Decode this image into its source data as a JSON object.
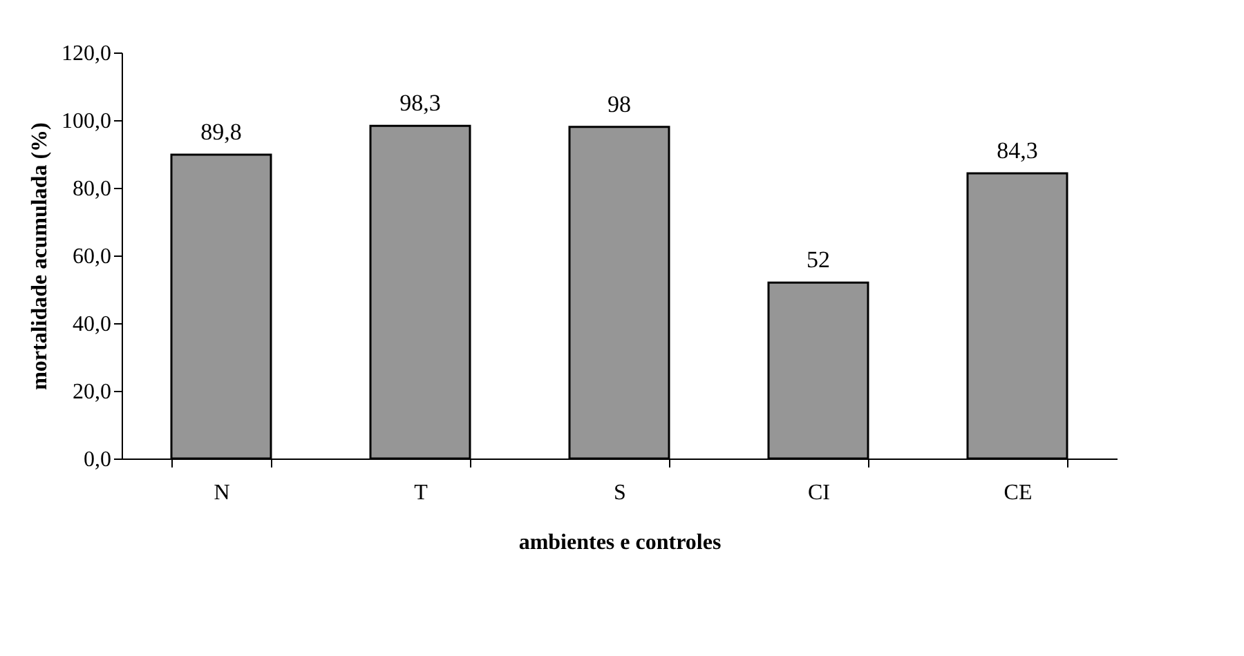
{
  "chart_data": {
    "type": "bar",
    "xlabel": "ambientes e controles",
    "ylabel": "mortalidade acumulada (%)",
    "categories": [
      "N",
      "T",
      "S",
      "CI",
      "CE"
    ],
    "values": [
      89.8,
      98.3,
      98,
      52,
      84.3
    ],
    "value_labels": [
      "89,8",
      "98,3",
      "98",
      "52",
      "84,3"
    ],
    "color": "#969696",
    "ylim": [
      0,
      120
    ],
    "yticks": [
      {
        "value": 0,
        "label": "0,0"
      },
      {
        "value": 20,
        "label": "20,0"
      },
      {
        "value": 40,
        "label": "40,0"
      },
      {
        "value": 60,
        "label": "60,0"
      },
      {
        "value": 80,
        "label": "80,0"
      },
      {
        "value": 100,
        "label": "100,0"
      },
      {
        "value": 120,
        "label": "120,0"
      }
    ],
    "grid": false
  }
}
